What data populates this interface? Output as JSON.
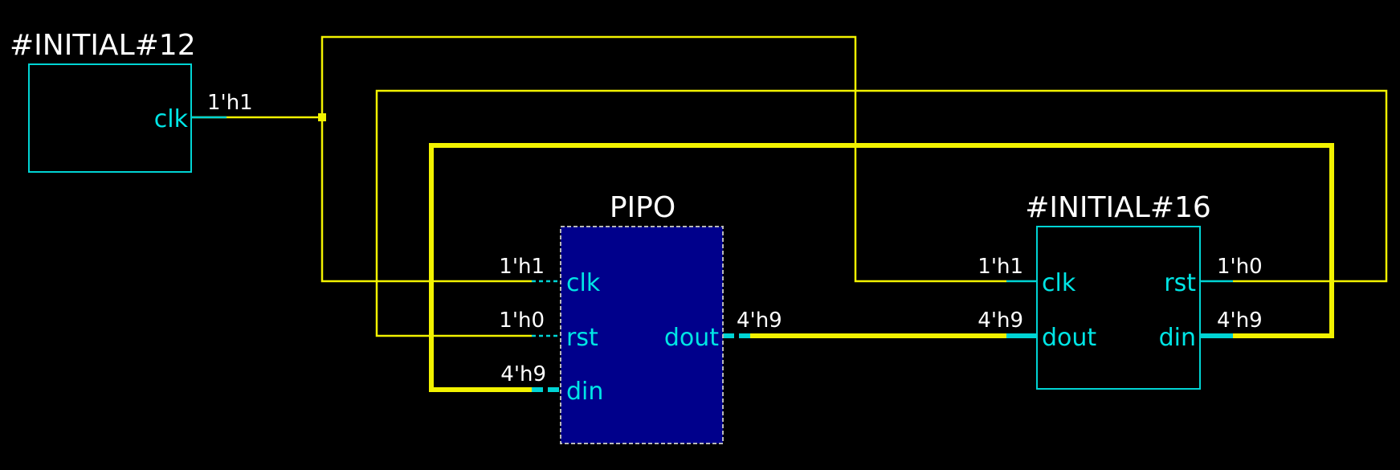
{
  "blocks": {
    "initial12": {
      "title": "#INITIAL#12",
      "clk": "clk",
      "clk_value": "1'h1"
    },
    "pipo": {
      "title": "PIPO",
      "clk": "clk",
      "rst": "rst",
      "din": "din",
      "dout": "dout",
      "clk_value": "1'h1",
      "rst_value": "1'h0",
      "din_value": "4'h9",
      "dout_value": "4'h9"
    },
    "initial16": {
      "title": "#INITIAL#16",
      "clk": "clk",
      "rst": "rst",
      "dout": "dout",
      "din": "din",
      "clk_value": "1'h1",
      "rst_value": "1'h0",
      "dout_value": "4'h9",
      "din_value": "4'h9"
    }
  },
  "colors": {
    "background": "#000000",
    "wire": "#f2f200",
    "port": "#00e5e5",
    "pipo_fill": "#00008b",
    "text": "#ffffff"
  }
}
